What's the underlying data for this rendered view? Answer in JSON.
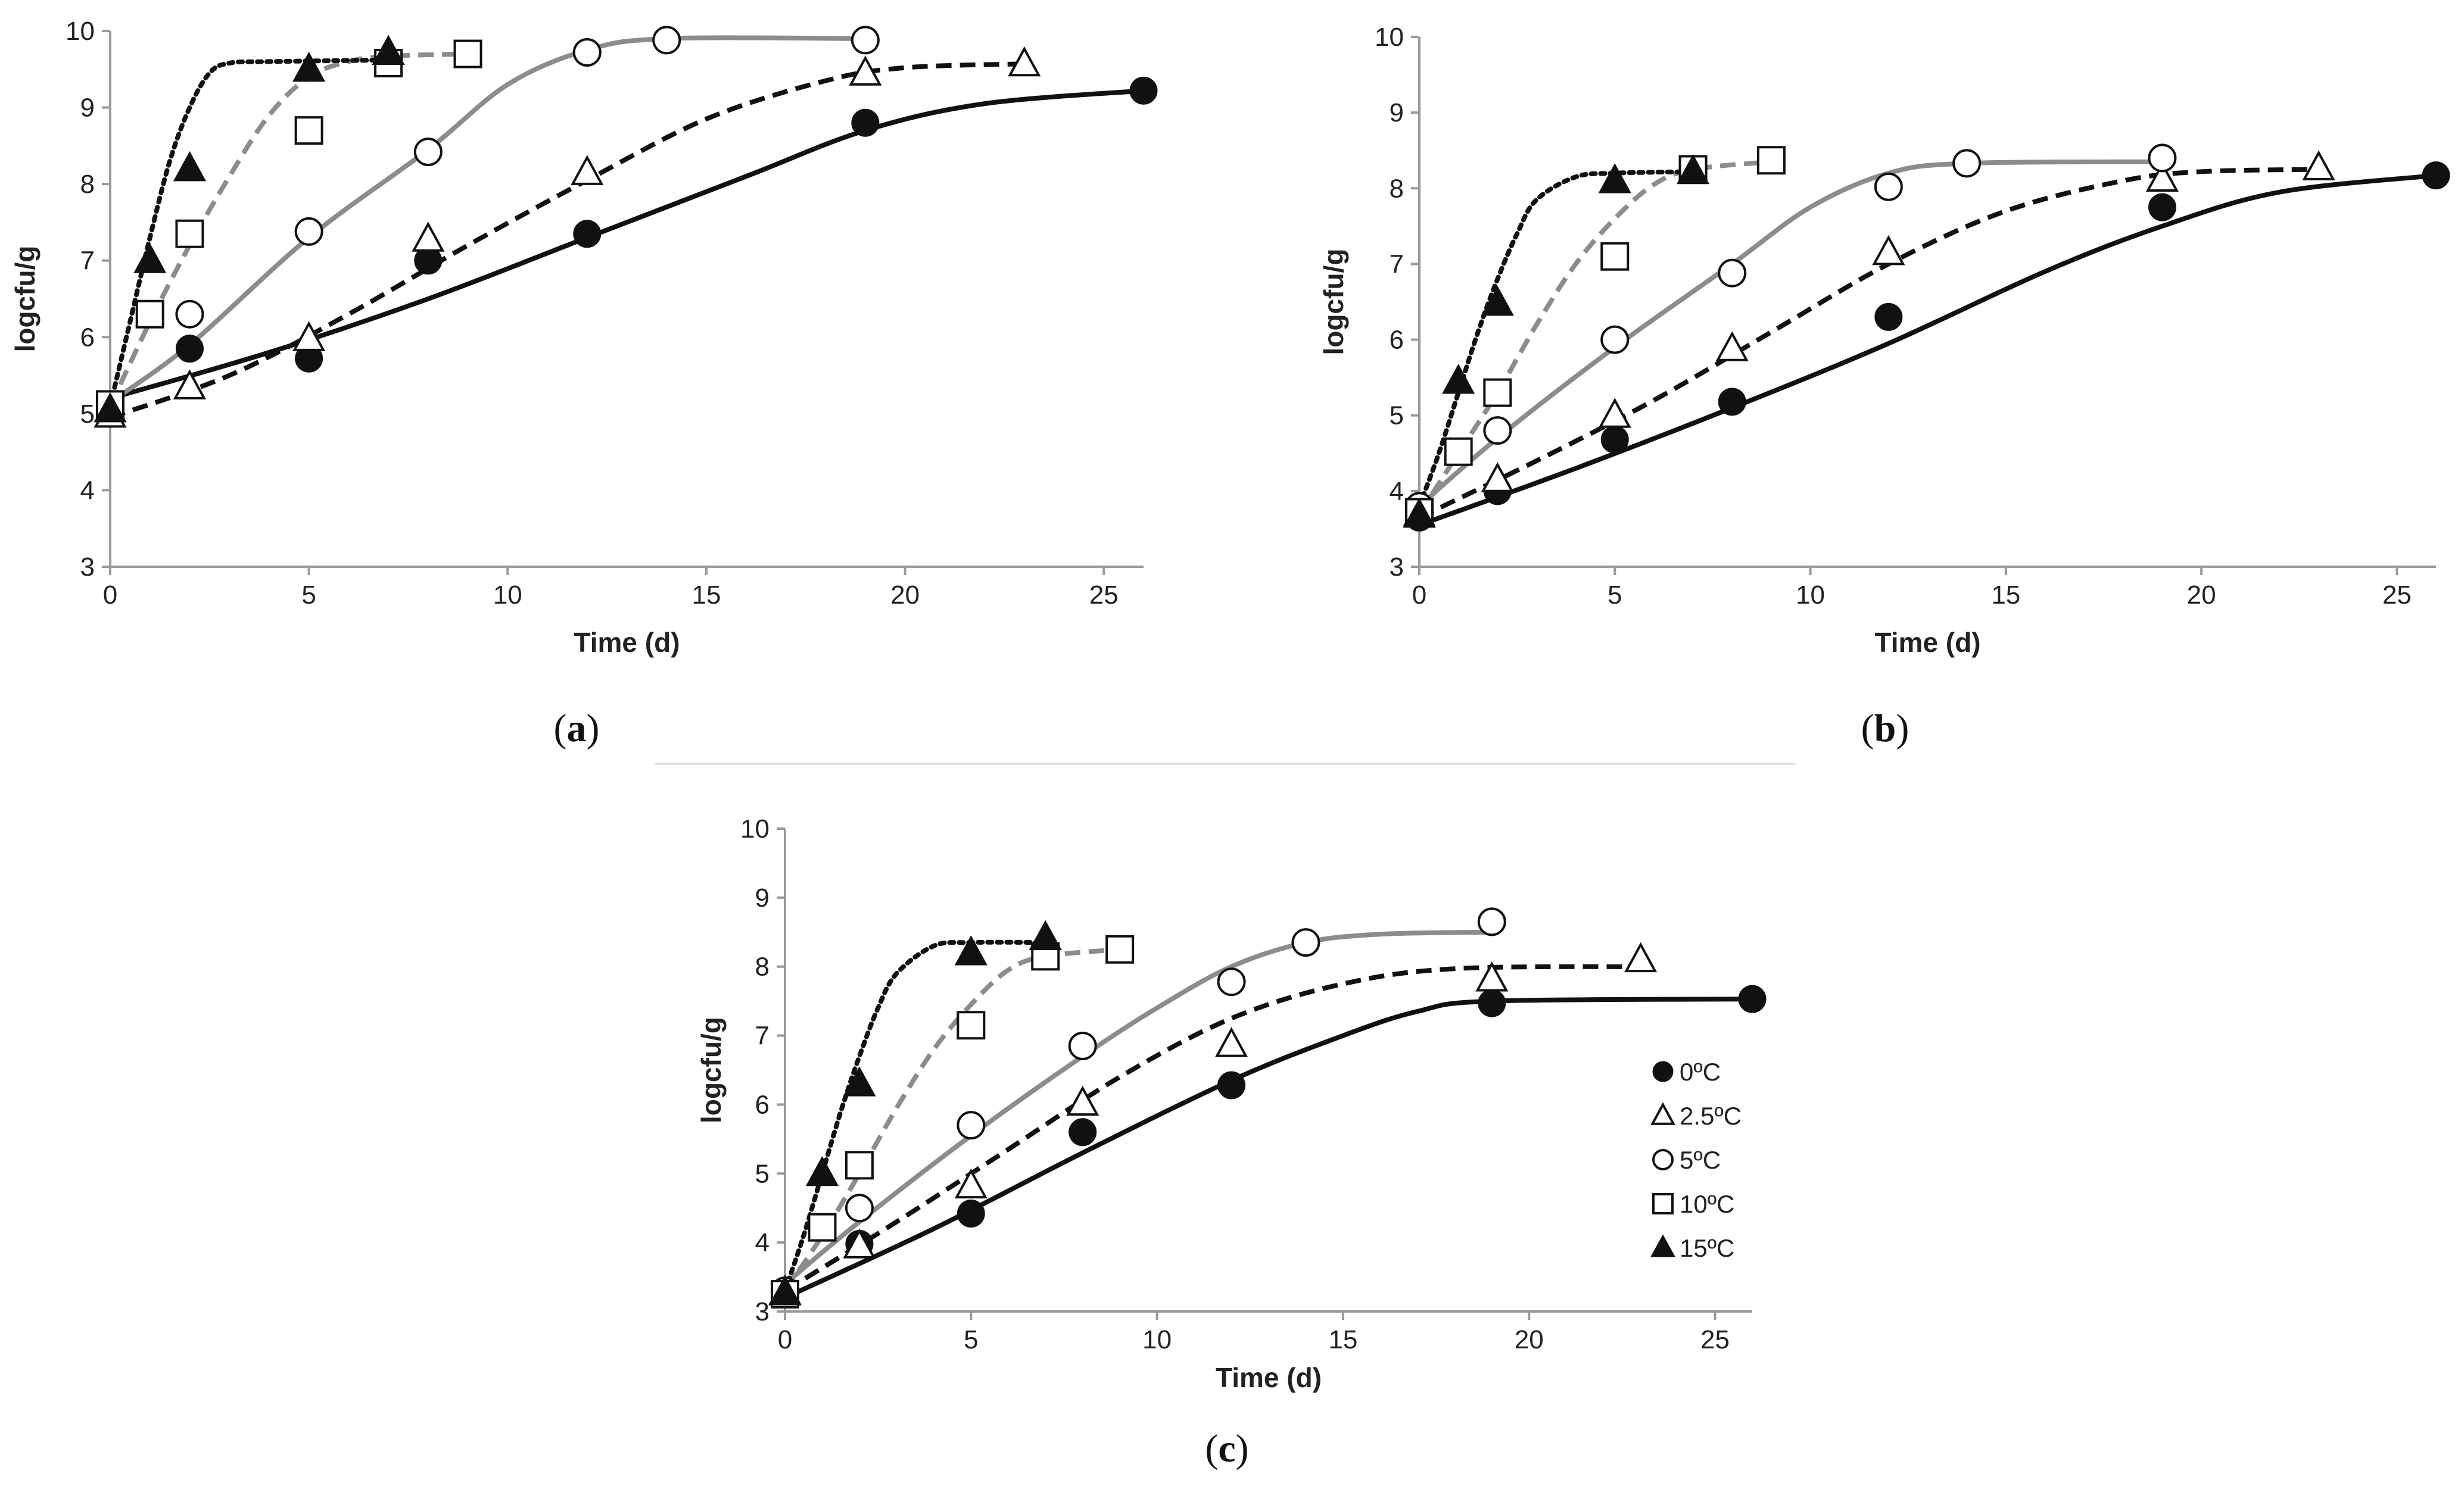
{
  "chart_data": [
    {
      "type": "line",
      "panel_label": "a",
      "xlabel": "Time (d)",
      "ylabel": "logcfu/g",
      "xlim": [
        0,
        26
      ],
      "ylim": [
        3,
        10
      ],
      "xticks": [
        0,
        5,
        10,
        15,
        20,
        25
      ],
      "yticks": [
        3,
        4,
        5,
        6,
        7,
        8,
        9,
        10
      ],
      "series": [
        {
          "name": "0ºC",
          "marker": "circle-filled",
          "line": "solid-black",
          "points": [
            [
              0,
              5.0
            ],
            [
              2,
              5.85
            ],
            [
              5,
              5.72
            ],
            [
              8,
              7.0
            ],
            [
              12,
              7.35
            ],
            [
              19,
              8.8
            ],
            [
              26,
              9.22
            ]
          ],
          "fit": [
            [
              0,
              5.2
            ],
            [
              4,
              5.8
            ],
            [
              8,
              6.5
            ],
            [
              12,
              7.3
            ],
            [
              16,
              8.1
            ],
            [
              19,
              8.7
            ],
            [
              22,
              9.05
            ],
            [
              26,
              9.22
            ]
          ]
        },
        {
          "name": "2.5ºC",
          "marker": "triangle-open",
          "line": "dashed-black",
          "points": [
            [
              0,
              4.98
            ],
            [
              2,
              5.35
            ],
            [
              5,
              5.98
            ],
            [
              8,
              7.28
            ],
            [
              12,
              8.15
            ],
            [
              19,
              9.45
            ],
            [
              23,
              9.57
            ]
          ],
          "fit": [
            [
              0,
              4.95
            ],
            [
              3,
              5.5
            ],
            [
              6,
              6.3
            ],
            [
              9,
              7.2
            ],
            [
              12,
              8.05
            ],
            [
              15,
              8.85
            ],
            [
              18,
              9.35
            ],
            [
              20,
              9.52
            ],
            [
              23,
              9.57
            ]
          ]
        },
        {
          "name": "5ºC",
          "marker": "circle-open",
          "line": "solid-gray",
          "points": [
            [
              0,
              5.1
            ],
            [
              2,
              6.3
            ],
            [
              5,
              7.38
            ],
            [
              8,
              8.42
            ],
            [
              12,
              9.72
            ],
            [
              14,
              9.88
            ],
            [
              19,
              9.88
            ]
          ],
          "fit": [
            [
              0,
              5.15
            ],
            [
              2,
              5.9
            ],
            [
              5,
              7.3
            ],
            [
              8,
              8.45
            ],
            [
              10,
              9.3
            ],
            [
              12,
              9.75
            ],
            [
              14,
              9.9
            ],
            [
              19,
              9.9
            ]
          ]
        },
        {
          "name": "10ºC",
          "marker": "square-open",
          "line": "dashed-gray",
          "points": [
            [
              0,
              5.12
            ],
            [
              1,
              6.3
            ],
            [
              2,
              7.35
            ],
            [
              5,
              8.7
            ],
            [
              7,
              9.58
            ],
            [
              9,
              9.7
            ]
          ],
          "fit": [
            [
              0,
              5.1
            ],
            [
              1,
              6.2
            ],
            [
              2,
              7.2
            ],
            [
              3,
              8.1
            ],
            [
              4,
              8.9
            ],
            [
              5,
              9.4
            ],
            [
              6,
              9.6
            ],
            [
              7,
              9.67
            ],
            [
              9,
              9.7
            ]
          ]
        },
        {
          "name": "15ºC",
          "marker": "triangle-filled",
          "line": "dotted-black",
          "points": [
            [
              0,
              5.05
            ],
            [
              1,
              7.0
            ],
            [
              2,
              8.2
            ],
            [
              5,
              9.5
            ],
            [
              7,
              9.72
            ]
          ],
          "fit": [
            [
              0,
              5.1
            ],
            [
              0.5,
              6.2
            ],
            [
              1,
              7.3
            ],
            [
              1.5,
              8.3
            ],
            [
              2,
              9.0
            ],
            [
              2.5,
              9.45
            ],
            [
              3,
              9.58
            ],
            [
              4,
              9.6
            ],
            [
              7,
              9.62
            ]
          ]
        }
      ]
    },
    {
      "type": "line",
      "panel_label": "b",
      "xlabel": "Time (d)",
      "ylabel": "logcfu/g",
      "xlim": [
        0,
        26
      ],
      "ylim": [
        3,
        10
      ],
      "xticks": [
        0,
        5,
        10,
        15,
        20,
        25
      ],
      "yticks": [
        3,
        4,
        5,
        6,
        7,
        8,
        9,
        10
      ],
      "series": [
        {
          "name": "0ºC",
          "marker": "circle-filled",
          "line": "solid-black",
          "points": [
            [
              0,
              3.65
            ],
            [
              2,
              4.0
            ],
            [
              5,
              4.68
            ],
            [
              8,
              5.18
            ],
            [
              12,
              6.3
            ],
            [
              19,
              7.75
            ],
            [
              26,
              8.17
            ]
          ],
          "fit": [
            [
              0,
              3.55
            ],
            [
              4,
              4.3
            ],
            [
              8,
              5.1
            ],
            [
              12,
              5.95
            ],
            [
              16,
              6.9
            ],
            [
              19,
              7.5
            ],
            [
              22,
              7.95
            ],
            [
              26,
              8.17
            ]
          ]
        },
        {
          "name": "2.5ºC",
          "marker": "triangle-open",
          "line": "dashed-black",
          "points": [
            [
              0,
              3.7
            ],
            [
              2,
              4.15
            ],
            [
              5,
              5.0
            ],
            [
              8,
              5.88
            ],
            [
              12,
              7.15
            ],
            [
              19,
              8.12
            ],
            [
              23,
              8.27
            ]
          ],
          "fit": [
            [
              0,
              3.65
            ],
            [
              3,
              4.4
            ],
            [
              6,
              5.2
            ],
            [
              9,
              6.1
            ],
            [
              12,
              7.0
            ],
            [
              15,
              7.7
            ],
            [
              18,
              8.1
            ],
            [
              20,
              8.22
            ],
            [
              23,
              8.25
            ]
          ]
        },
        {
          "name": "5ºC",
          "marker": "circle-open",
          "line": "solid-gray",
          "points": [
            [
              0,
              3.8
            ],
            [
              2,
              4.8
            ],
            [
              5,
              6.0
            ],
            [
              8,
              6.88
            ],
            [
              12,
              8.02
            ],
            [
              14,
              8.33
            ],
            [
              19,
              8.4
            ]
          ],
          "fit": [
            [
              0,
              3.8
            ],
            [
              2,
              4.7
            ],
            [
              5,
              5.9
            ],
            [
              8,
              7.0
            ],
            [
              10,
              7.75
            ],
            [
              12,
              8.2
            ],
            [
              14,
              8.33
            ],
            [
              19,
              8.35
            ]
          ]
        },
        {
          "name": "10ºC",
          "marker": "square-open",
          "line": "dashed-gray",
          "points": [
            [
              0,
              3.72
            ],
            [
              1,
              4.52
            ],
            [
              2,
              5.3
            ],
            [
              5,
              7.1
            ],
            [
              7,
              8.25
            ],
            [
              9,
              8.37
            ]
          ],
          "fit": [
            [
              0,
              3.7
            ],
            [
              1,
              4.5
            ],
            [
              2,
              5.3
            ],
            [
              3,
              6.2
            ],
            [
              4,
              7.0
            ],
            [
              5,
              7.6
            ],
            [
              6,
              8.05
            ],
            [
              7,
              8.25
            ],
            [
              9,
              8.35
            ]
          ]
        },
        {
          "name": "15ºC",
          "marker": "triangle-filled",
          "line": "dotted-black",
          "points": [
            [
              0,
              3.68
            ],
            [
              1,
              5.45
            ],
            [
              2,
              6.48
            ],
            [
              5,
              8.1
            ],
            [
              7,
              8.22
            ]
          ],
          "fit": [
            [
              0,
              3.8
            ],
            [
              0.5,
              4.5
            ],
            [
              1,
              5.3
            ],
            [
              1.5,
              6.1
            ],
            [
              2,
              6.8
            ],
            [
              2.5,
              7.4
            ],
            [
              3,
              7.85
            ],
            [
              4,
              8.15
            ],
            [
              5,
              8.2
            ],
            [
              7,
              8.22
            ]
          ]
        }
      ]
    },
    {
      "type": "line",
      "panel_label": "c",
      "xlabel": "Time (d)",
      "ylabel": "logcfu/g",
      "xlim": [
        0,
        26
      ],
      "ylim": [
        3,
        10
      ],
      "xticks": [
        0,
        5,
        10,
        15,
        20,
        25
      ],
      "yticks": [
        3,
        4,
        5,
        6,
        7,
        8,
        9,
        10
      ],
      "legend": {
        "position": "right",
        "entries": [
          "0ºC",
          "2.5ºC",
          "5ºC",
          "10ºC",
          "15ºC"
        ]
      },
      "series": [
        {
          "name": "0ºC",
          "marker": "circle-filled",
          "line": "solid-black",
          "points": [
            [
              0,
              3.25
            ],
            [
              2,
              3.98
            ],
            [
              5,
              4.42
            ],
            [
              8,
              5.6
            ],
            [
              12,
              6.28
            ],
            [
              19,
              7.47
            ],
            [
              26,
              7.53
            ]
          ],
          "fit": [
            [
              0,
              3.2
            ],
            [
              4,
              4.2
            ],
            [
              8,
              5.3
            ],
            [
              12,
              6.35
            ],
            [
              15,
              7.0
            ],
            [
              17,
              7.35
            ],
            [
              19,
              7.5
            ],
            [
              26,
              7.53
            ]
          ]
        },
        {
          "name": "2.5ºC",
          "marker": "triangle-open",
          "line": "dashed-black",
          "points": [
            [
              0,
              3.28
            ],
            [
              2,
              3.95
            ],
            [
              5,
              4.82
            ],
            [
              8,
              6.02
            ],
            [
              12,
              6.87
            ],
            [
              19,
              7.82
            ],
            [
              23,
              8.1
            ]
          ],
          "fit": [
            [
              0,
              3.3
            ],
            [
              3,
              4.3
            ],
            [
              6,
              5.35
            ],
            [
              9,
              6.4
            ],
            [
              12,
              7.25
            ],
            [
              15,
              7.75
            ],
            [
              18,
              7.97
            ],
            [
              23,
              8.0
            ]
          ]
        },
        {
          "name": "5ºC",
          "marker": "circle-open",
          "line": "solid-gray",
          "points": [
            [
              0,
              3.3
            ],
            [
              2,
              4.5
            ],
            [
              5,
              5.7
            ],
            [
              8,
              6.85
            ],
            [
              12,
              7.78
            ],
            [
              14,
              8.35
            ],
            [
              19,
              8.65
            ]
          ],
          "fit": [
            [
              0,
              3.4
            ],
            [
              2,
              4.3
            ],
            [
              5,
              5.55
            ],
            [
              8,
              6.7
            ],
            [
              10,
              7.4
            ],
            [
              12,
              8.0
            ],
            [
              14,
              8.35
            ],
            [
              16,
              8.47
            ],
            [
              19,
              8.5
            ]
          ]
        },
        {
          "name": "10ºC",
          "marker": "square-open",
          "line": "dashed-gray",
          "points": [
            [
              0,
              3.25
            ],
            [
              1,
              4.22
            ],
            [
              2,
              5.12
            ],
            [
              5,
              7.15
            ],
            [
              7,
              8.15
            ],
            [
              9,
              8.25
            ]
          ],
          "fit": [
            [
              0,
              3.3
            ],
            [
              1,
              4.1
            ],
            [
              2,
              5.0
            ],
            [
              3,
              5.95
            ],
            [
              4,
              6.8
            ],
            [
              5,
              7.45
            ],
            [
              6,
              7.95
            ],
            [
              7,
              8.15
            ],
            [
              9,
              8.25
            ]
          ]
        },
        {
          "name": "15ºC",
          "marker": "triangle-filled",
          "line": "dotted-black",
          "points": [
            [
              0,
              3.27
            ],
            [
              1,
              5.0
            ],
            [
              2,
              6.3
            ],
            [
              5,
              8.2
            ],
            [
              7,
              8.42
            ]
          ],
          "fit": [
            [
              0,
              3.3
            ],
            [
              0.5,
              4.1
            ],
            [
              1,
              5.0
            ],
            [
              1.5,
              5.9
            ],
            [
              2,
              6.7
            ],
            [
              2.5,
              7.4
            ],
            [
              3,
              7.9
            ],
            [
              4,
              8.3
            ],
            [
              5,
              8.35
            ],
            [
              7,
              8.35
            ]
          ]
        }
      ]
    }
  ],
  "legend_title": "",
  "colors": {
    "black": "#111111",
    "gray": "#8c8c8c",
    "axis": "#9a9a9a"
  }
}
